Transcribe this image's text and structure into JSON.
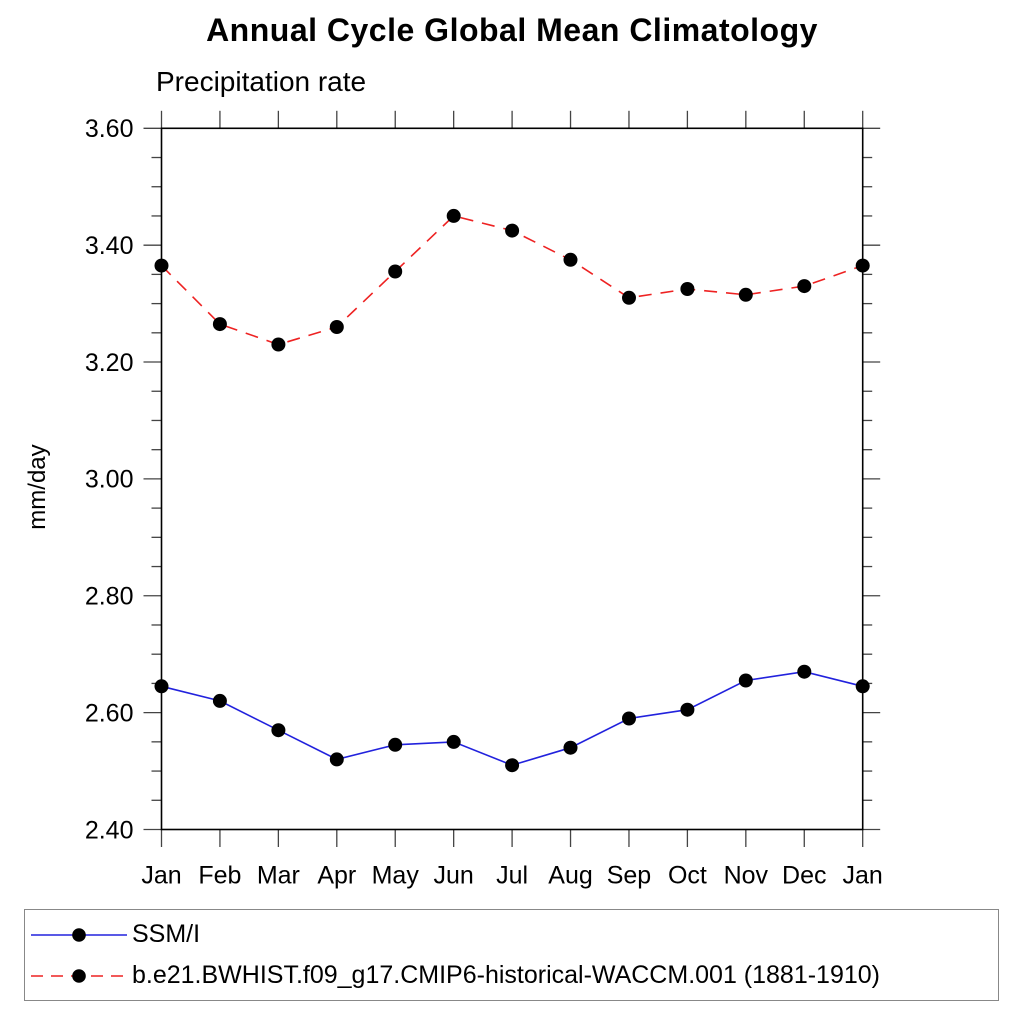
{
  "chart_data": {
    "type": "line",
    "title": "Annual Cycle Global Mean Climatology",
    "subtitle": "Precipitation rate",
    "ylabel": "mm/day",
    "categories": [
      "Jan",
      "Feb",
      "Mar",
      "Apr",
      "May",
      "Jun",
      "Jul",
      "Aug",
      "Sep",
      "Oct",
      "Nov",
      "Dec",
      "Jan"
    ],
    "ylim": [
      2.4,
      3.6
    ],
    "ytick_labels": [
      "2.40",
      "2.60",
      "2.80",
      "3.00",
      "3.20",
      "3.40",
      "3.60"
    ],
    "ytick_major_step": 0.2,
    "ytick_minor_step": 0.05,
    "grid": false,
    "legend_position": "bottom-box",
    "series": [
      {
        "name": "SSM/I",
        "color": "#2222dd",
        "line_style": "solid",
        "marker": "filled-circle",
        "marker_color": "#000000",
        "values": [
          2.645,
          2.62,
          2.57,
          2.52,
          2.545,
          2.55,
          2.51,
          2.54,
          2.59,
          2.605,
          2.655,
          2.67,
          2.645
        ]
      },
      {
        "name": "b.e21.BWHIST.f09_g17.CMIP6-historical-WACCM.001 (1881-1910)",
        "color": "#ee2222",
        "line_style": "dashed",
        "marker": "filled-circle",
        "marker_color": "#000000",
        "values": [
          3.365,
          3.265,
          3.23,
          3.26,
          3.355,
          3.45,
          3.425,
          3.375,
          3.31,
          3.325,
          3.315,
          3.33,
          3.365
        ]
      }
    ]
  },
  "colors": {
    "axis": "#000000",
    "tick": "#444444",
    "text": "#000000",
    "legend_border": "#888888",
    "background": "#ffffff"
  }
}
